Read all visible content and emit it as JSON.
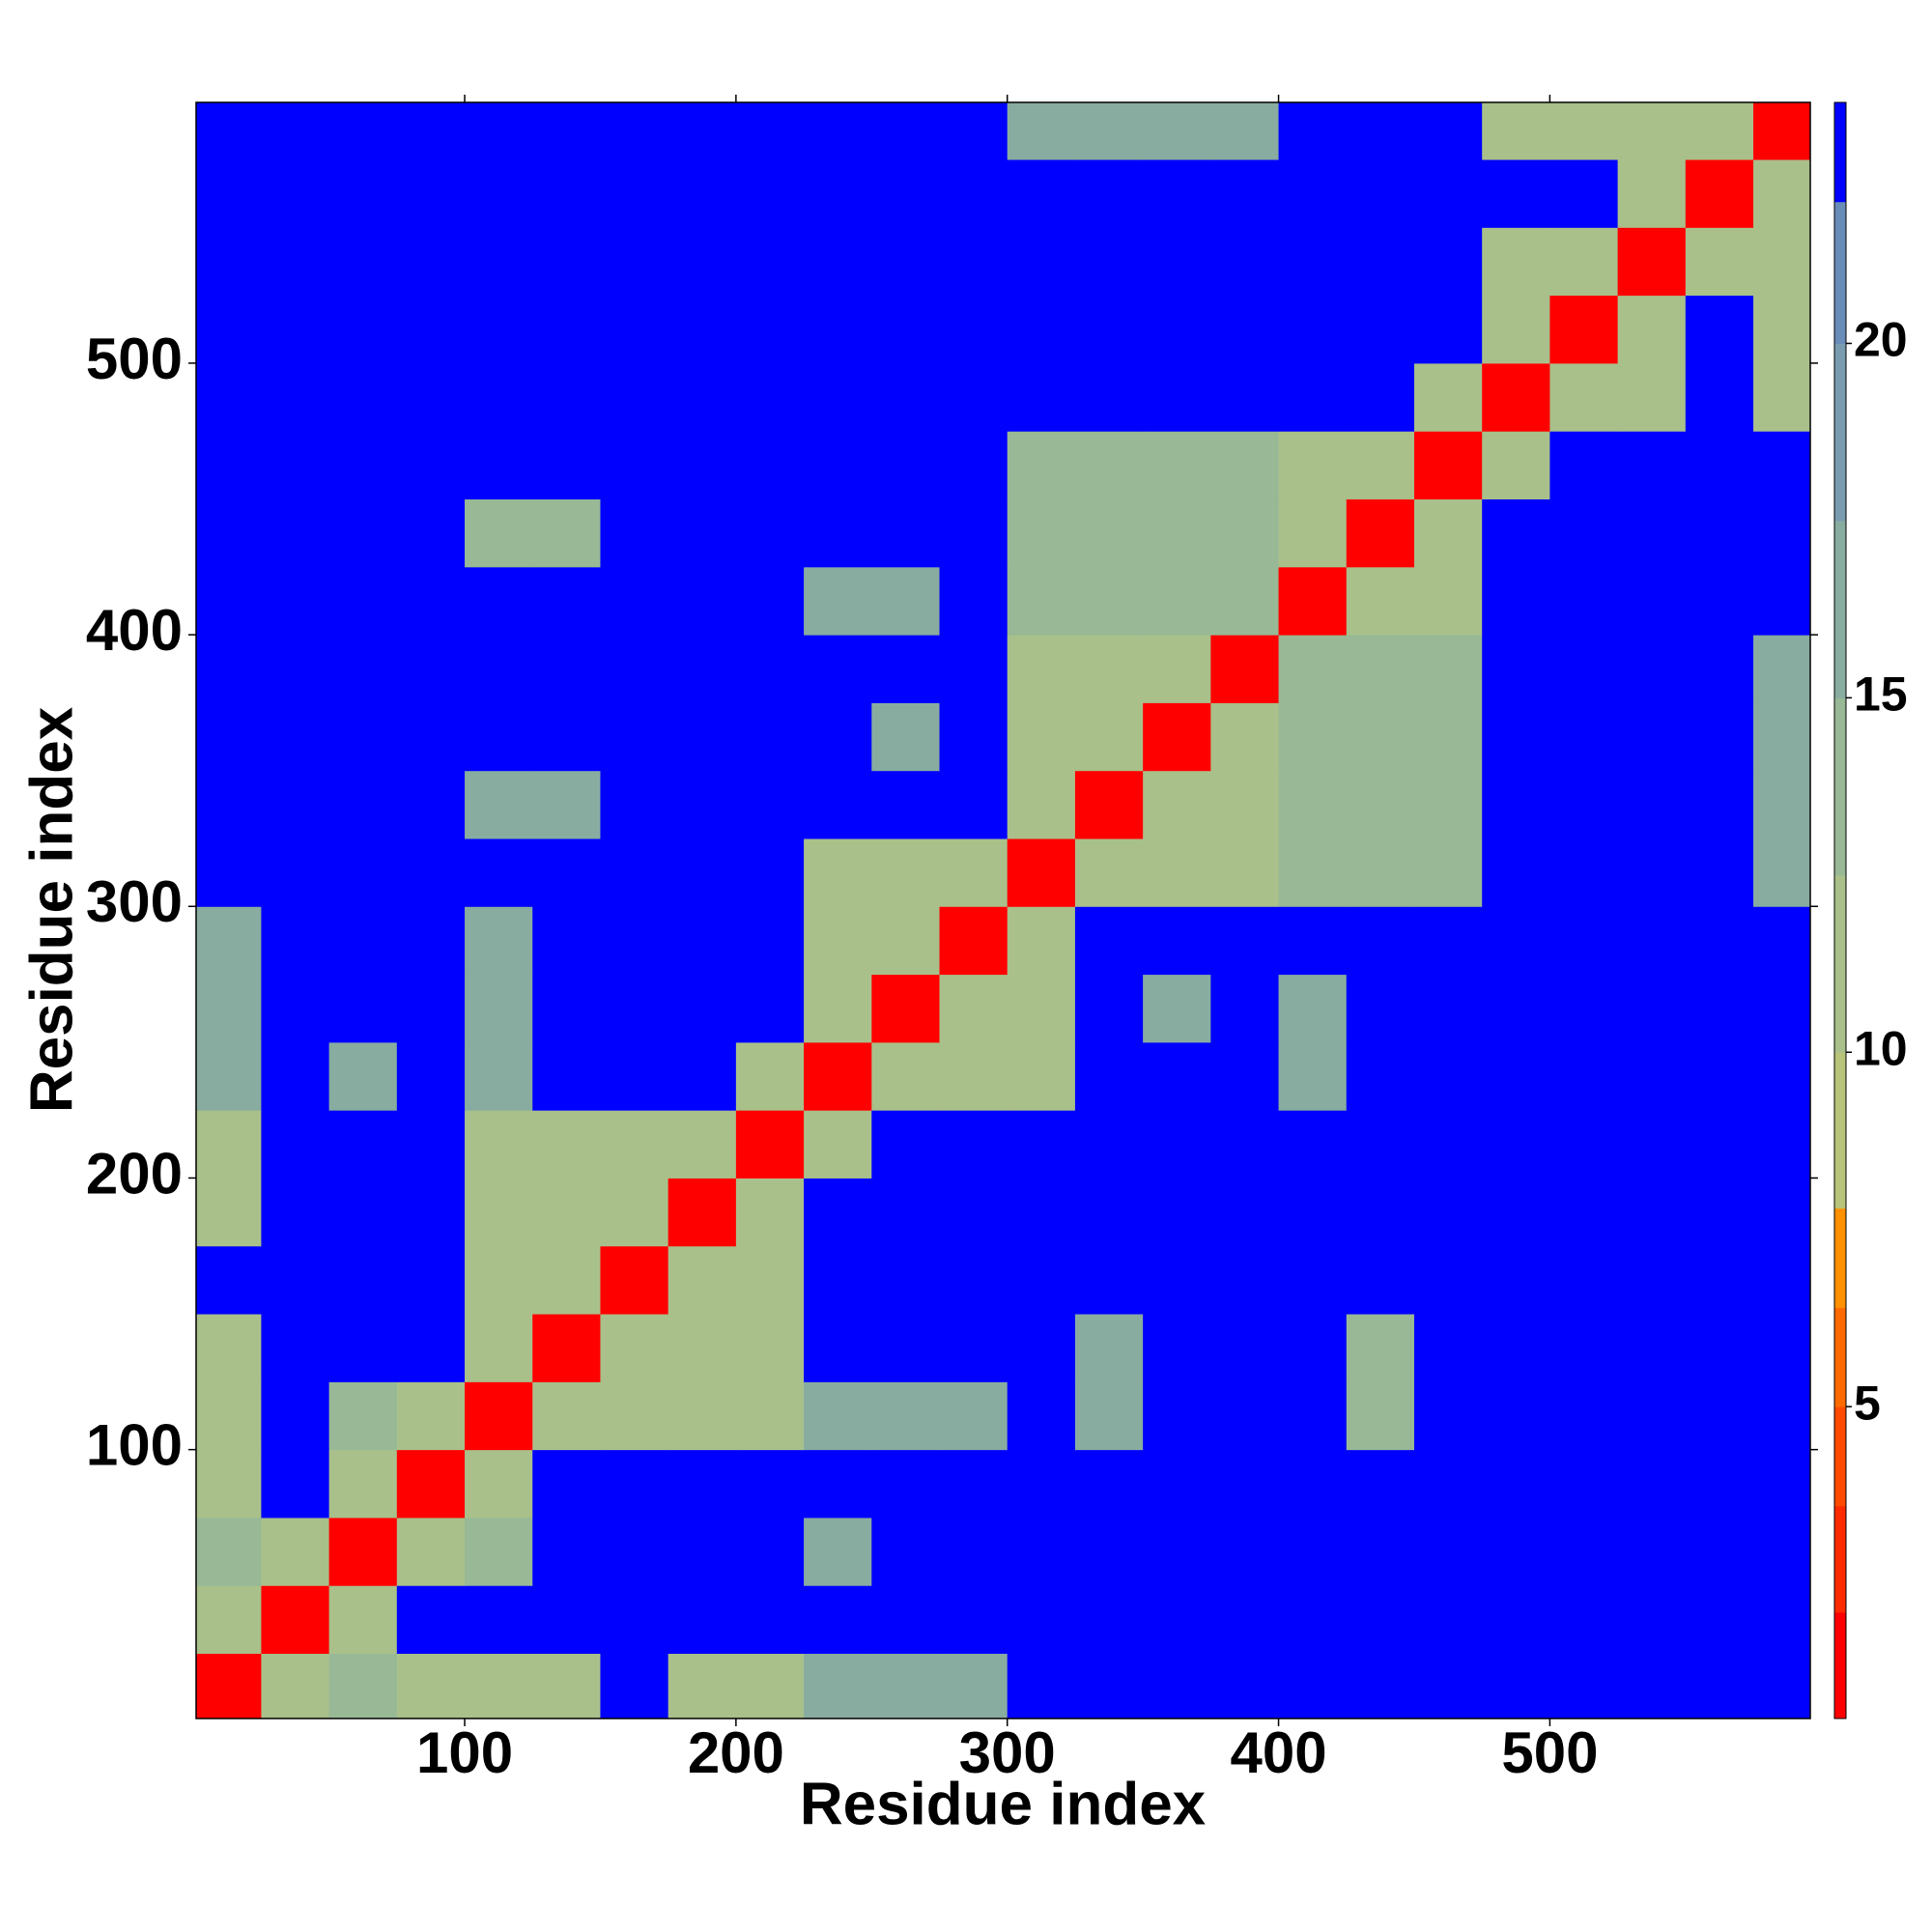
{
  "chart_data": {
    "type": "heatmap",
    "xlabel": "Residue index",
    "ylabel": "Residue index",
    "xlim": [
      1,
      596
    ],
    "ylim": [
      1,
      596
    ],
    "xticks": [
      100,
      200,
      300,
      400,
      500
    ],
    "yticks": [
      100,
      200,
      300,
      400,
      500
    ],
    "xbins": [
      0,
      25,
      50,
      75,
      100,
      125,
      150,
      175,
      200,
      225,
      250,
      275,
      300,
      325,
      350,
      375,
      400,
      425,
      450,
      475,
      500,
      525,
      550,
      575,
      600
    ],
    "ybins": [
      0,
      25,
      50,
      75,
      100,
      125,
      150,
      175,
      200,
      225,
      250,
      275,
      300,
      325,
      350,
      375,
      400,
      425,
      450,
      475,
      500,
      525,
      550,
      575,
      600
    ],
    "z": [
      [
        2,
        12,
        14,
        12,
        12,
        12,
        23,
        12,
        12,
        16,
        16,
        16,
        23,
        23,
        23,
        23,
        23,
        23,
        23,
        23,
        23,
        23,
        23,
        23
      ],
      [
        12,
        2,
        12,
        23,
        23,
        23,
        23,
        23,
        23,
        23,
        23,
        23,
        23,
        23,
        23,
        23,
        23,
        23,
        23,
        23,
        23,
        23,
        23,
        23
      ],
      [
        14,
        12,
        2,
        12,
        14,
        23,
        23,
        23,
        23,
        16,
        23,
        23,
        23,
        23,
        23,
        23,
        23,
        23,
        23,
        23,
        23,
        23,
        23,
        23
      ],
      [
        12,
        23,
        12,
        2,
        12,
        23,
        23,
        23,
        23,
        23,
        23,
        23,
        23,
        23,
        23,
        23,
        23,
        23,
        23,
        23,
        23,
        23,
        23,
        23
      ],
      [
        12,
        23,
        14,
        12,
        2,
        10,
        10,
        10,
        10,
        16,
        16,
        16,
        23,
        15,
        23,
        23,
        23,
        14,
        23,
        23,
        23,
        23,
        23,
        23
      ],
      [
        12,
        23,
        23,
        23,
        10,
        2,
        10,
        10,
        10,
        23,
        23,
        23,
        23,
        15,
        23,
        23,
        23,
        14,
        23,
        23,
        23,
        23,
        23,
        23
      ],
      [
        23,
        23,
        23,
        23,
        10,
        10,
        2,
        10,
        10,
        23,
        23,
        23,
        23,
        23,
        23,
        23,
        23,
        23,
        23,
        23,
        23,
        23,
        23,
        23
      ],
      [
        12,
        23,
        23,
        23,
        10,
        10,
        10,
        2,
        10,
        23,
        23,
        23,
        23,
        23,
        23,
        23,
        23,
        23,
        23,
        23,
        23,
        23,
        23,
        23
      ],
      [
        12,
        23,
        23,
        23,
        10,
        10,
        10,
        10,
        2,
        12,
        23,
        23,
        23,
        23,
        23,
        23,
        23,
        23,
        23,
        23,
        23,
        23,
        23,
        23
      ],
      [
        16,
        23,
        16,
        23,
        16,
        23,
        23,
        23,
        12,
        2,
        10,
        10,
        10,
        23,
        23,
        23,
        16,
        23,
        23,
        23,
        23,
        23,
        23,
        23
      ],
      [
        16,
        23,
        23,
        23,
        16,
        23,
        23,
        23,
        23,
        10,
        2,
        10,
        10,
        23,
        16,
        23,
        16,
        23,
        23,
        23,
        23,
        23,
        23,
        23
      ],
      [
        16,
        23,
        23,
        23,
        16,
        23,
        23,
        23,
        23,
        10,
        10,
        2,
        10,
        23,
        23,
        23,
        23,
        23,
        23,
        23,
        23,
        23,
        23,
        23
      ],
      [
        23,
        23,
        23,
        23,
        23,
        23,
        23,
        23,
        23,
        10,
        10,
        10,
        2,
        10,
        10,
        10,
        13,
        13,
        13,
        23,
        23,
        23,
        23,
        16
      ],
      [
        23,
        23,
        23,
        23,
        15,
        15,
        23,
        23,
        23,
        23,
        23,
        23,
        10,
        2,
        10,
        10,
        13,
        13,
        13,
        23,
        23,
        23,
        23,
        16
      ],
      [
        23,
        23,
        23,
        23,
        23,
        23,
        23,
        23,
        23,
        23,
        16,
        23,
        10,
        10,
        2,
        10,
        13,
        13,
        13,
        23,
        23,
        23,
        23,
        16
      ],
      [
        23,
        23,
        23,
        23,
        23,
        23,
        23,
        23,
        23,
        23,
        23,
        23,
        10,
        10,
        10,
        2,
        13,
        13,
        13,
        23,
        23,
        23,
        23,
        16
      ],
      [
        23,
        23,
        23,
        23,
        23,
        23,
        23,
        23,
        23,
        16,
        16,
        23,
        13,
        13,
        13,
        13,
        2,
        10,
        10,
        23,
        23,
        23,
        23,
        23
      ],
      [
        23,
        23,
        23,
        23,
        14,
        14,
        23,
        23,
        23,
        23,
        23,
        23,
        13,
        13,
        13,
        13,
        10,
        2,
        10,
        23,
        23,
        23,
        23,
        23
      ],
      [
        23,
        23,
        23,
        23,
        23,
        23,
        23,
        23,
        23,
        23,
        23,
        23,
        13,
        13,
        13,
        13,
        10,
        10,
        2,
        12,
        23,
        23,
        23,
        23
      ],
      [
        23,
        23,
        23,
        23,
        23,
        23,
        23,
        23,
        23,
        23,
        23,
        23,
        23,
        23,
        23,
        23,
        23,
        23,
        12,
        2,
        10,
        10,
        23,
        12
      ],
      [
        23,
        23,
        23,
        23,
        23,
        23,
        23,
        23,
        23,
        23,
        23,
        23,
        23,
        23,
        23,
        23,
        23,
        23,
        23,
        10,
        2,
        10,
        23,
        12
      ],
      [
        23,
        23,
        23,
        23,
        23,
        23,
        23,
        23,
        23,
        23,
        23,
        23,
        23,
        23,
        23,
        23,
        23,
        23,
        23,
        10,
        10,
        2,
        12,
        12
      ],
      [
        23,
        23,
        23,
        23,
        23,
        23,
        23,
        23,
        23,
        23,
        23,
        23,
        23,
        23,
        23,
        23,
        23,
        23,
        23,
        23,
        23,
        12,
        2,
        12
      ],
      [
        23,
        23,
        23,
        23,
        23,
        23,
        23,
        23,
        23,
        23,
        23,
        23,
        16,
        16,
        16,
        16,
        23,
        23,
        23,
        12,
        12,
        12,
        12,
        2
      ]
    ],
    "clim": [
      0.6,
      23.4
    ],
    "colorbar_ticks": [
      5,
      10,
      15,
      20
    ],
    "color_levels": [
      0.6,
      2.1,
      3.6,
      5,
      6.4,
      7.8,
      10,
      12.5,
      15,
      17.5,
      20,
      22,
      23.4
    ],
    "colors": [
      "#ff0000",
      "#ff2a00",
      "#ff4a00",
      "#ff6a00",
      "#ff9000",
      "#b8c47a",
      "#a9c08a",
      "#98b896",
      "#88aca0",
      "#7a9cb0",
      "#6a8cb8",
      "#0000ff"
    ]
  }
}
